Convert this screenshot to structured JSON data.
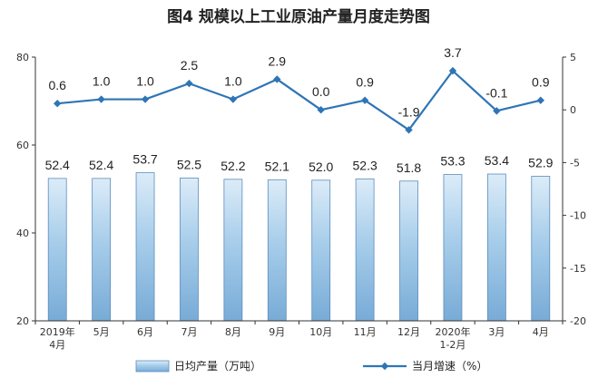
{
  "chart_data": {
    "type": "bar+line",
    "title": "图4  规模以上工业原油产量月度走势图",
    "categories": [
      [
        "2019年",
        "4月"
      ],
      [
        "5月"
      ],
      [
        "6月"
      ],
      [
        "7月"
      ],
      [
        "8月"
      ],
      [
        "9月"
      ],
      [
        "10月"
      ],
      [
        "11月"
      ],
      [
        "12月"
      ],
      [
        "2020年",
        "1-2月"
      ],
      [
        "3月"
      ],
      [
        "4月"
      ]
    ],
    "series": [
      {
        "name": "日均产量（万吨）",
        "type": "bar",
        "axis": "left",
        "values": [
          52.4,
          52.4,
          53.7,
          52.5,
          52.2,
          52.1,
          52.0,
          52.3,
          51.8,
          53.3,
          53.4,
          52.9
        ],
        "labels": [
          "52.4",
          "52.4",
          "53.7",
          "52.5",
          "52.2",
          "52.1",
          "52.0",
          "52.3",
          "51.8",
          "53.3",
          "53.4",
          "52.9"
        ]
      },
      {
        "name": "当月增速（%）",
        "type": "line",
        "axis": "right",
        "values": [
          0.6,
          1.0,
          1.0,
          2.5,
          1.0,
          2.9,
          0.0,
          0.9,
          -1.9,
          3.7,
          -0.1,
          0.9
        ],
        "labels": [
          "0.6",
          "1.0",
          "1.0",
          "2.5",
          "1.0",
          "2.9",
          "0.0",
          "0.9",
          "-1.9",
          "3.7",
          "-0.1",
          "0.9"
        ]
      }
    ],
    "y_left": {
      "lim": [
        20,
        80
      ],
      "ticks": [
        20,
        40,
        60,
        80
      ]
    },
    "y_right": {
      "lim": [
        -20,
        5
      ],
      "ticks": [
        -20,
        -15,
        -10,
        -5,
        0,
        5
      ]
    },
    "legend": {
      "position": "bottom"
    },
    "colors": {
      "bar_top": "#dcecf8",
      "bar_mid": "#a7cdea",
      "bar_bottom": "#78abd6",
      "bar_stroke": "#5b8dbf",
      "line": "#2e75b6",
      "axis": "#333333"
    },
    "grid": false
  }
}
